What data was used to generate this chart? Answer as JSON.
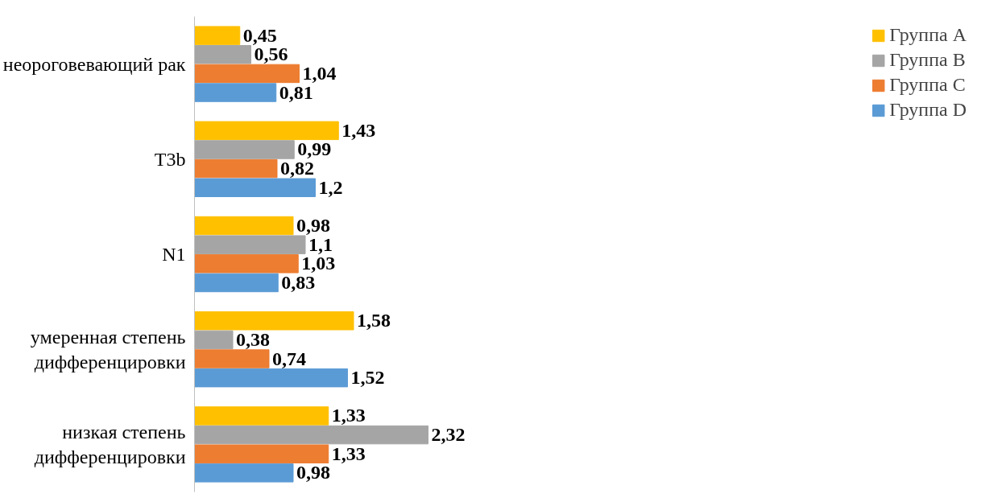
{
  "chart_data": {
    "type": "bar",
    "orientation": "horizontal",
    "categories": [
      "неороговевающий рак",
      "T3b",
      "N1",
      "умеренная степень дифференцировки",
      "низкая степень дифференцировки"
    ],
    "series": [
      {
        "name": "Группа A",
        "color": "#ffc000",
        "values": [
          0.45,
          1.43,
          0.98,
          1.58,
          1.33
        ],
        "value_labels": [
          "0,45",
          "1,43",
          "0,98",
          "1,58",
          "1,33"
        ]
      },
      {
        "name": "Группа B",
        "color": "#a5a5a5",
        "values": [
          0.56,
          0.99,
          1.1,
          0.38,
          2.32
        ],
        "value_labels": [
          "0,56",
          "0,99",
          "1,1",
          "0,38",
          "2,32"
        ]
      },
      {
        "name": "Группа C",
        "color": "#ed7d31",
        "values": [
          1.04,
          0.82,
          1.03,
          0.74,
          1.33
        ],
        "value_labels": [
          "1,04",
          "0,82",
          "1,03",
          "0,74",
          "1,33"
        ]
      },
      {
        "name": "Группа D",
        "color": "#5b9bd5",
        "values": [
          0.81,
          1.2,
          0.83,
          1.52,
          0.98
        ],
        "value_labels": [
          "0,81",
          "1,2",
          "0,83",
          "1,52",
          "0,98"
        ]
      }
    ],
    "legend": "right"
  }
}
